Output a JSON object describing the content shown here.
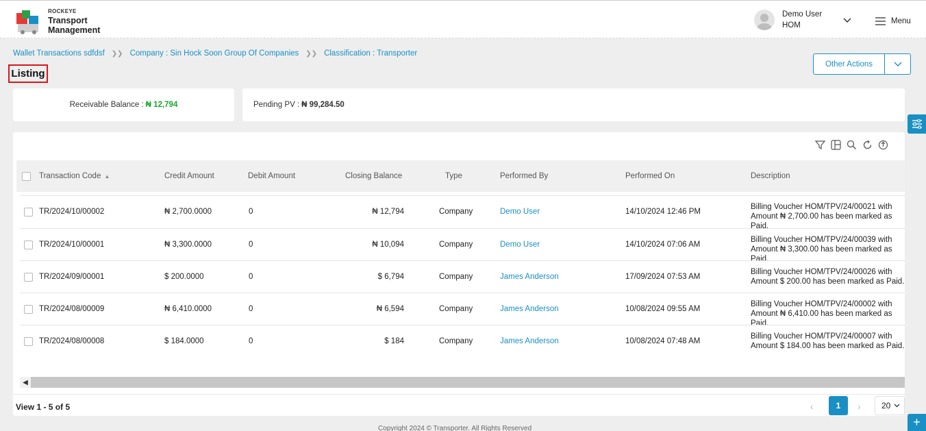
{
  "header": {
    "brand_small": "ROCKEYE",
    "brand_line1": "Transport",
    "brand_line2": "Management",
    "user_name": "Demo User",
    "user_role": "HOM",
    "menu_label": "Menu"
  },
  "breadcrumb": [
    "Wallet Transactions sdfdsf",
    "Company : Sin Hock Soon Group Of Companies",
    "Classification : Transporter"
  ],
  "page_title": "Listing",
  "other_actions_label": "Other Actions",
  "summary": {
    "receivable_label": "Receivable Balance :",
    "receivable_value": "₦ 12,794",
    "pending_label": "Pending PV :",
    "pending_value": "₦ 99,284.50"
  },
  "table": {
    "columns": [
      "Transaction Code",
      "Credit Amount",
      "Debit Amount",
      "Closing Balance",
      "Type",
      "Performed By",
      "Performed On",
      "Description"
    ],
    "rows": [
      {
        "code": "TR/2024/10/00002",
        "credit": "₦ 2,700.0000",
        "debit": "0",
        "closing": "₦ 12,794",
        "type": "Company",
        "by": "Demo User",
        "on": "14/10/2024 12:46 PM",
        "desc": "Billing Voucher HOM/TPV/24/00021 with Amount ₦ 2,700.00 has been marked as Paid."
      },
      {
        "code": "TR/2024/10/00001",
        "credit": "₦ 3,300.0000",
        "debit": "0",
        "closing": "₦ 10,094",
        "type": "Company",
        "by": "Demo User",
        "on": "14/10/2024 07:06 AM",
        "desc": "Billing Voucher HOM/TPV/24/00039 with Amount ₦ 3,300.00 has been marked as Paid."
      },
      {
        "code": "TR/2024/09/00001",
        "credit": "$ 200.0000",
        "debit": "0",
        "closing": "$ 6,794",
        "type": "Company",
        "by": "James Anderson",
        "on": "17/09/2024 07:53 AM",
        "desc": "Billing Voucher HOM/TPV/24/00026 with Amount $ 200.00 has been marked as Paid."
      },
      {
        "code": "TR/2024/08/00009",
        "credit": "₦ 6,410.0000",
        "debit": "0",
        "closing": "₦ 6,594",
        "type": "Company",
        "by": "James Anderson",
        "on": "10/08/2024 09:55 AM",
        "desc": "Billing Voucher HOM/TPV/24/00002 with Amount ₦ 6,410.00 has been marked as Paid."
      },
      {
        "code": "TR/2024/08/00008",
        "credit": "$ 184.0000",
        "debit": "0",
        "closing": "$ 184",
        "type": "Company",
        "by": "James Anderson",
        "on": "10/08/2024 07:48 AM",
        "desc": "Billing Voucher HOM/TPV/24/00007 with Amount $ 184.00 has been marked as Paid."
      }
    ]
  },
  "pagination": {
    "view_text": "View 1 - 5 of 5",
    "current_page": "1",
    "page_size": "20"
  },
  "footer": {
    "copyright": "Copyright 2024 © Transporter. All Rights Reserved"
  },
  "colors": {
    "accent": "#1a8fc4",
    "positive": "#1aa72c",
    "highlight_border": "#d9151b"
  }
}
